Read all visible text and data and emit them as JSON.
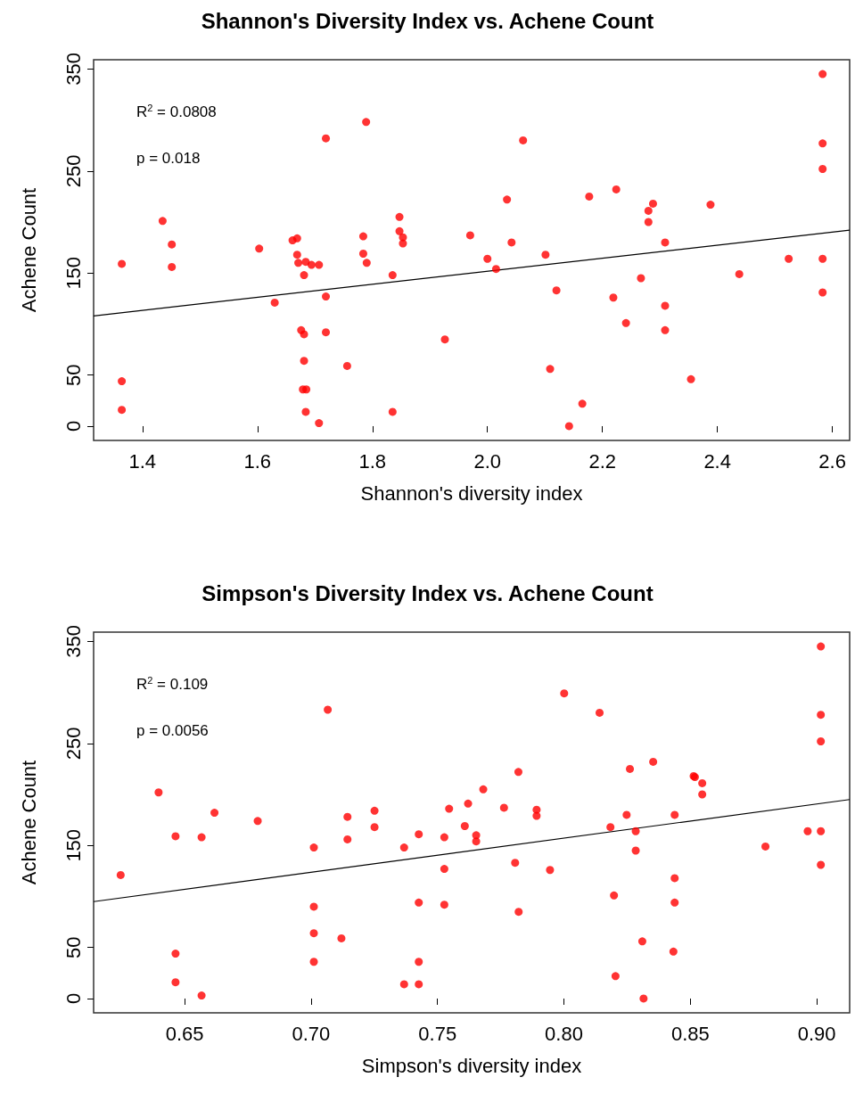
{
  "chart_data": [
    {
      "type": "scatter",
      "title": "Shannon's Diversity Index vs. Achene Count",
      "xlabel": "Shannon's diversity index",
      "ylabel": "Achene Count",
      "annotations": [
        "R$^{2}$ = 0.0808",
        "p = 0.018"
      ],
      "xlim": [
        1.315,
        2.63
      ],
      "ylim": [
        -14,
        359
      ],
      "xticks": [
        1.4,
        1.6,
        1.8,
        {
          "value": 2,
          "label": "2.0"
        },
        2.2,
        2.4,
        2.6
      ],
      "yticks": [
        0,
        50,
        150,
        250,
        350
      ],
      "series": [
        {
          "color": "#ff0000",
          "marker": "circle",
          "x": [
            1.364,
            1.435,
            1.451,
            1.451,
            1.364,
            1.364,
            1.603,
            1.63,
            1.661,
            1.669,
            1.669,
            1.671,
            1.684,
            1.694,
            1.707,
            1.681,
            1.676,
            1.681,
            1.681,
            1.679,
            1.685,
            1.684,
            1.707,
            1.719,
            1.719,
            1.719,
            1.756,
            1.789,
            1.784,
            1.784,
            1.79,
            1.835,
            1.835,
            1.847,
            1.847,
            1.853,
            1.853,
            1.926,
            1.97,
            2.0,
            2.015,
            2.034,
            2.042,
            2.062,
            2.101,
            2.109,
            2.12,
            2.142,
            2.165,
            2.177,
            2.219,
            2.224,
            2.241,
            2.267,
            2.28,
            2.28,
            2.288,
            2.309,
            2.309,
            2.309,
            2.354,
            2.388,
            2.438,
            2.524,
            2.583,
            2.583,
            2.583,
            2.583,
            2.583
          ],
          "values": [
            159,
            201,
            178,
            156,
            44,
            16,
            174,
            121,
            182,
            184,
            168,
            160,
            161,
            158,
            158,
            148,
            94,
            90,
            64,
            36,
            36,
            14,
            3,
            282,
            127,
            92,
            59,
            298,
            186,
            169,
            160,
            148,
            14,
            205,
            191,
            185,
            179,
            85,
            187,
            164,
            154,
            222,
            180,
            280,
            168,
            56,
            133,
            0,
            22,
            225,
            126,
            232,
            101,
            145,
            200,
            211,
            218,
            180,
            118,
            94,
            46,
            217,
            149,
            164,
            345,
            277,
            252,
            164,
            131
          ]
        },
        {
          "type": "line",
          "color": "#000000",
          "marker": "none",
          "x": [
            1.315,
            2.63
          ],
          "values": [
            108,
            192
          ]
        }
      ]
    },
    {
      "type": "scatter",
      "title": "Simpson's Diversity Index vs. Achene Count",
      "xlabel": "Simpson's diversity index",
      "ylabel": "Achene Count",
      "annotations": [
        "R$^{2}$ = 0.109",
        "p = 0.0056"
      ],
      "xlim": [
        0.614,
        0.913
      ],
      "ylim": [
        -14,
        359
      ],
      "xticks": [
        0.65,
        {
          "value": 0.7,
          "label": "0.70"
        },
        0.75,
        {
          "value": 0.8,
          "label": "0.80"
        },
        0.85,
        {
          "value": 0.9,
          "label": "0.90"
        }
      ],
      "yticks": [
        0,
        50,
        150,
        250,
        350
      ],
      "series": [
        {
          "color": "#ff0000",
          "marker": "circle",
          "x": [
            0.6247,
            0.6397,
            0.6464,
            0.6464,
            0.6464,
            0.6567,
            0.6567,
            0.6618,
            0.6789,
            0.7011,
            0.7011,
            0.7011,
            0.7011,
            0.7066,
            0.712,
            0.7144,
            0.7144,
            0.7251,
            0.7251,
            0.7368,
            0.7368,
            0.7426,
            0.7426,
            0.7426,
            0.7426,
            0.7527,
            0.7527,
            0.7527,
            0.7546,
            0.7608,
            0.7621,
            0.7653,
            0.7653,
            0.7681,
            0.7763,
            0.7807,
            0.782,
            0.7821,
            0.7892,
            0.7892,
            0.7945,
            0.8001,
            0.8141,
            0.8184,
            0.8198,
            0.8204,
            0.8248,
            0.8261,
            0.8284,
            0.8284,
            0.831,
            0.8315,
            0.8353,
            0.8433,
            0.8438,
            0.8438,
            0.8438,
            0.8513,
            0.8518,
            0.8547,
            0.8547,
            0.8797,
            0.8964,
            0.9016,
            0.9016,
            0.9016,
            0.9016,
            0.9016
          ],
          "values": [
            121,
            202,
            159,
            44,
            16,
            158,
            3,
            182,
            174,
            148,
            90,
            64,
            36,
            283,
            59,
            178,
            156,
            184,
            168,
            148,
            14,
            161,
            94,
            36,
            14,
            158,
            127,
            92,
            186,
            169,
            191,
            160,
            154,
            205,
            187,
            133,
            222,
            85,
            185,
            179,
            126,
            299,
            280,
            168,
            101,
            22,
            180,
            225,
            164,
            145,
            56,
            0,
            232,
            46,
            180,
            118,
            94,
            218,
            217,
            211,
            200,
            149,
            164,
            345,
            278,
            252,
            164,
            131
          ]
        },
        {
          "type": "line",
          "color": "#000000",
          "marker": "none",
          "x": [
            0.614,
            0.913
          ],
          "values": [
            95,
            195
          ]
        }
      ]
    }
  ]
}
